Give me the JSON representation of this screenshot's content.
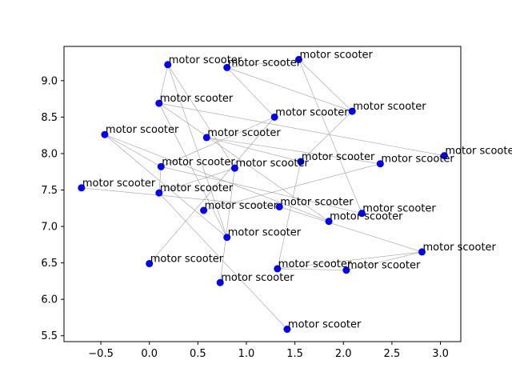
{
  "chart_data": {
    "type": "scatter",
    "title": "",
    "xlabel": "",
    "ylabel": "",
    "xlim": [
      -0.88,
      3.21
    ],
    "ylim": [
      5.42,
      9.47
    ],
    "xticks": [
      -0.5,
      0.0,
      0.5,
      1.0,
      1.5,
      2.0,
      2.5,
      3.0
    ],
    "xtick_labels": [
      "−0.5",
      "0.0",
      "0.5",
      "1.0",
      "1.5",
      "2.0",
      "2.5",
      "3.0"
    ],
    "yticks": [
      5.5,
      6.0,
      6.5,
      7.0,
      7.5,
      8.0,
      8.5,
      9.0
    ],
    "ytick_labels": [
      "5.5",
      "6.0",
      "6.5",
      "7.0",
      "7.5",
      "8.0",
      "8.5",
      "9.0"
    ],
    "grid": false,
    "marker_color": "#0000ff",
    "edge_color": "#a0a0a0",
    "points": [
      {
        "label": "motor scooter",
        "x": 0.19,
        "y": 9.22
      },
      {
        "label": "motor scooter",
        "x": 0.8,
        "y": 9.18
      },
      {
        "label": "motor scooter",
        "x": 1.54,
        "y": 9.29
      },
      {
        "label": "motor scooter",
        "x": 0.1,
        "y": 8.69
      },
      {
        "label": "motor scooter",
        "x": 1.29,
        "y": 8.5
      },
      {
        "label": "motor scooter",
        "x": 2.09,
        "y": 8.58
      },
      {
        "label": "motor scooter",
        "x": -0.46,
        "y": 8.26
      },
      {
        "label": "motor scooter",
        "x": 0.59,
        "y": 8.22
      },
      {
        "label": "motor scooter",
        "x": 3.04,
        "y": 7.97
      },
      {
        "label": "motor scooter",
        "x": 1.56,
        "y": 7.89
      },
      {
        "label": "motor scooter",
        "x": 2.38,
        "y": 7.86
      },
      {
        "label": "motor scooter",
        "x": 0.12,
        "y": 7.82
      },
      {
        "label": "motor scooter",
        "x": 0.88,
        "y": 7.8
      },
      {
        "label": "motor scooter",
        "x": -0.7,
        "y": 7.53
      },
      {
        "label": "motor scooter",
        "x": 0.1,
        "y": 7.46
      },
      {
        "label": "motor scooter",
        "x": 1.34,
        "y": 7.27
      },
      {
        "label": "motor scooter",
        "x": 0.56,
        "y": 7.22
      },
      {
        "label": "motor scooter",
        "x": 2.19,
        "y": 7.18
      },
      {
        "label": "motor scooter",
        "x": 1.85,
        "y": 7.07
      },
      {
        "label": "motor scooter",
        "x": 0.8,
        "y": 6.85
      },
      {
        "label": "motor scooter",
        "x": 2.81,
        "y": 6.65
      },
      {
        "label": "motor scooter",
        "x": 0.0,
        "y": 6.49
      },
      {
        "label": "motor scooter",
        "x": 1.32,
        "y": 6.42
      },
      {
        "label": "motor scooter",
        "x": 2.03,
        "y": 6.4
      },
      {
        "label": "motor scooter",
        "x": 0.73,
        "y": 6.23
      },
      {
        "label": "motor scooter",
        "x": 1.42,
        "y": 5.59
      }
    ],
    "edges": [
      [
        0,
        19
      ],
      [
        0,
        12
      ],
      [
        0,
        3
      ],
      [
        1,
        5
      ],
      [
        1,
        2
      ],
      [
        1,
        4
      ],
      [
        2,
        5
      ],
      [
        2,
        17
      ],
      [
        3,
        8
      ],
      [
        3,
        18
      ],
      [
        4,
        11
      ],
      [
        4,
        21
      ],
      [
        5,
        9
      ],
      [
        6,
        11
      ],
      [
        6,
        18
      ],
      [
        7,
        10
      ],
      [
        7,
        9
      ],
      [
        9,
        22
      ],
      [
        10,
        16
      ],
      [
        11,
        14
      ],
      [
        11,
        17
      ],
      [
        12,
        24
      ],
      [
        12,
        14
      ],
      [
        13,
        15
      ],
      [
        14,
        25
      ],
      [
        15,
        20
      ],
      [
        19,
        6
      ],
      [
        20,
        22
      ],
      [
        20,
        23
      ],
      [
        22,
        23
      ],
      [
        3,
        19
      ]
    ]
  }
}
